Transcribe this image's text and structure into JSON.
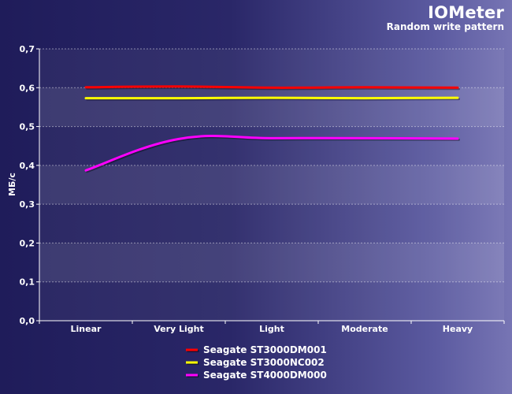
{
  "header": {
    "title": "IOMeter",
    "subtitle": "Random write pattern"
  },
  "chart_data": {
    "type": "line",
    "title": "IOMeter",
    "subtitle": "Random write pattern",
    "xlabel": "",
    "ylabel": "МБ/с",
    "categories": [
      "Linear",
      "Very Light",
      "Light",
      "Moderate",
      "Heavy"
    ],
    "ylim": [
      0,
      0.7
    ],
    "yticks": [
      "0,0",
      "0,1",
      "0,2",
      "0,3",
      "0,4",
      "0,5",
      "0,6",
      "0,7"
    ],
    "grid": true,
    "legend_position": "bottom",
    "series": [
      {
        "name": "Seagate ST3000DM001",
        "color": "#ff0000",
        "values": [
          0.601,
          0.603,
          0.6,
          0.601,
          0.6
        ]
      },
      {
        "name": "Seagate ST3000NC002",
        "color": "#ffff00",
        "values": [
          0.573,
          0.573,
          0.574,
          0.573,
          0.574
        ]
      },
      {
        "name": "Seagate ST4000DM000",
        "color": "#ff00ff",
        "values": [
          0.387,
          0.468,
          0.47,
          0.47,
          0.469
        ]
      }
    ]
  }
}
